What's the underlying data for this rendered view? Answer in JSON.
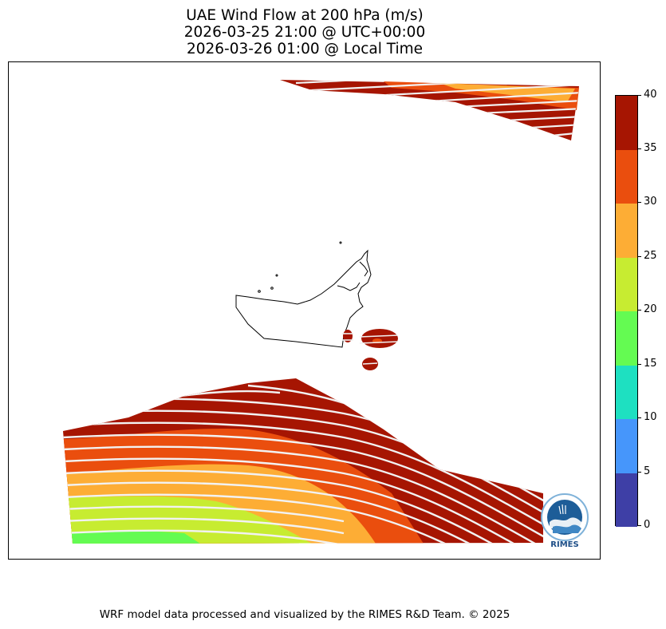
{
  "title": {
    "line1": "UAE Wind Flow at 200 hPa (m/s)",
    "line2": "2026-03-25 21:00 @ UTC+00:00",
    "line3": "2026-03-26 01:00 @ Local Time"
  },
  "colorbar": {
    "ticks": [
      "0",
      "5",
      "10",
      "15",
      "20",
      "25",
      "30",
      "35",
      "40"
    ],
    "min": 0,
    "max": 40,
    "levels": [
      {
        "from": 0,
        "to": 5,
        "color": "#3e3fa6"
      },
      {
        "from": 5,
        "to": 10,
        "color": "#4696fb"
      },
      {
        "from": 10,
        "to": 15,
        "color": "#1ee0c1"
      },
      {
        "from": 15,
        "to": 20,
        "color": "#64fb52"
      },
      {
        "from": 20,
        "to": 25,
        "color": "#c7ec31"
      },
      {
        "from": 25,
        "to": 30,
        "color": "#fdad35"
      },
      {
        "from": 30,
        "to": 35,
        "color": "#ea4e0e"
      },
      {
        "from": 35,
        "to": 40,
        "color": "#a61502"
      }
    ]
  },
  "logo": {
    "text": "RIMES",
    "ring_text": "Multi-Hazard Early Warning"
  },
  "footer": "WRF model data processed and visualized by the RIMES R&D Team. © 2025"
}
